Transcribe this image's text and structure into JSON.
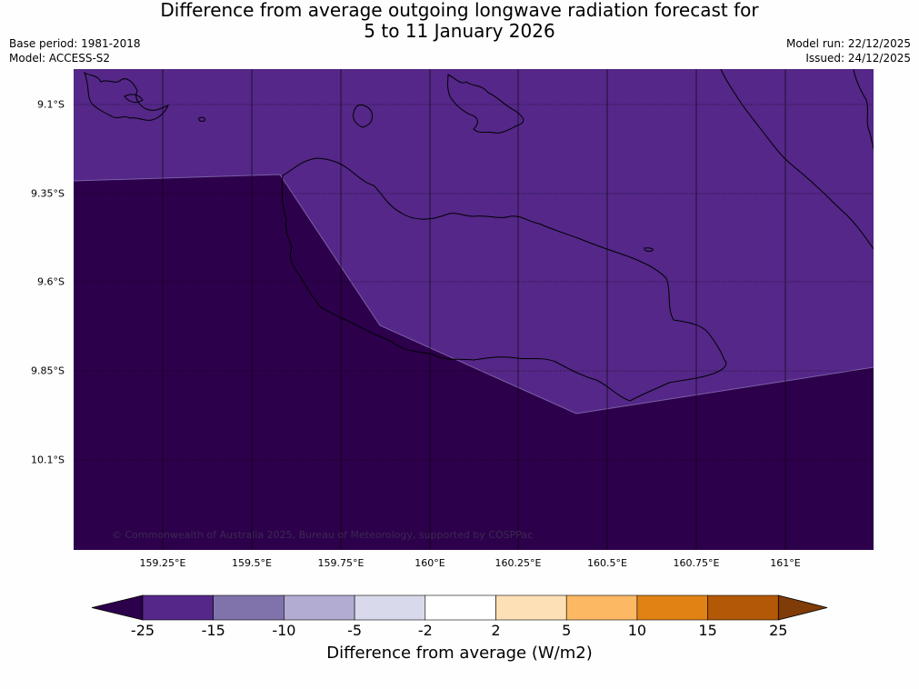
{
  "title": {
    "line1": "Difference from average outgoing longwave radiation forecast for",
    "line2": "5 to 11 January 2026"
  },
  "meta_left": {
    "base_period": "Base period: 1981-2018",
    "model": "Model: ACCESS-S2"
  },
  "meta_right": {
    "model_run": "Model run: 22/12/2025",
    "issued": "Issued: 24/12/2025"
  },
  "map": {
    "lat_labels": [
      "9.1°S",
      "9.35°S",
      "9.6°S",
      "9.85°S",
      "10.1°S"
    ],
    "lon_labels": [
      "159.25°E",
      "159.5°E",
      "159.75°E",
      "160°E",
      "160.25°E",
      "160.5°E",
      "160.75°E",
      "161°E"
    ],
    "copyright": "© Commonwealth of Australia 2025, Bureau of Meteorology, supported by COSPPac"
  },
  "colorbar": {
    "ticks": [
      "-25",
      "-15",
      "-10",
      "-5",
      "-2",
      "2",
      "5",
      "10",
      "15",
      "25"
    ],
    "colors": {
      "under": "#2d004b",
      "bins": [
        "#542788",
        "#8073ac",
        "#b2abd2",
        "#d8daeb",
        "#ffffff",
        "#fee0b6",
        "#fdb863",
        "#e08214",
        "#b35806"
      ],
      "over": "#7f3b08"
    },
    "label": "Difference from average (W/m2)"
  },
  "fill_colors": {
    "dark": "#2d004b",
    "light": "#542788",
    "line": "#000000"
  }
}
